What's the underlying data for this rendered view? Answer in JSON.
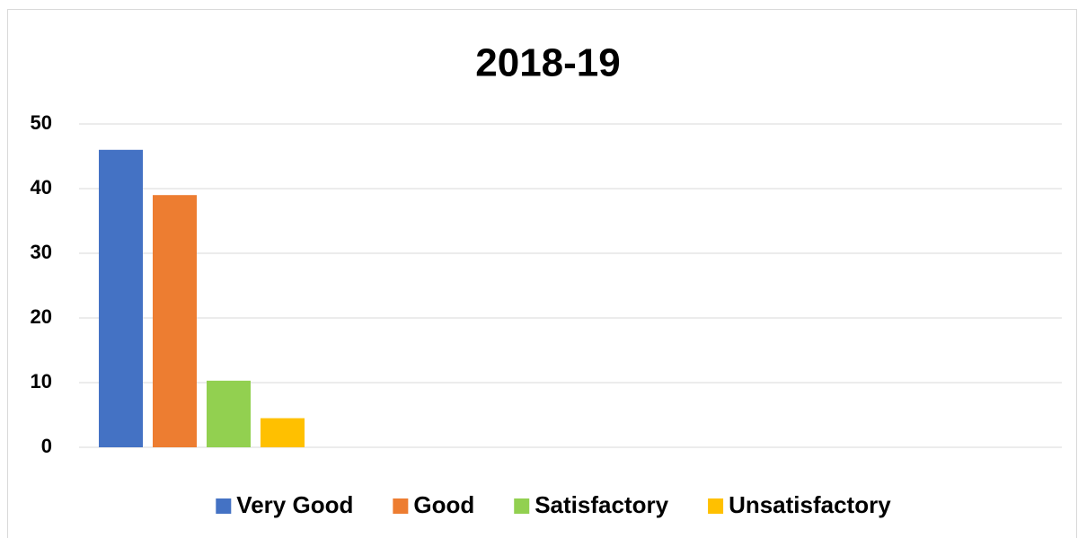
{
  "chart_data": {
    "type": "bar",
    "title": "2018-19",
    "categories": [
      null
    ],
    "series": [
      {
        "name": "Very Good",
        "color": "#4472c4",
        "values": [
          46
        ]
      },
      {
        "name": "Good",
        "color": "#ed7d31",
        "values": [
          39
        ]
      },
      {
        "name": "Satisfactory",
        "color": "#92d050",
        "values": [
          10.3
        ]
      },
      {
        "name": "Unsatisfactory",
        "color": "#ffc000",
        "values": [
          4.5
        ]
      }
    ],
    "ylim": [
      0,
      50
    ],
    "yticks": [
      0,
      10,
      20,
      30,
      40,
      50
    ],
    "grid": true,
    "legend": "bottom"
  }
}
